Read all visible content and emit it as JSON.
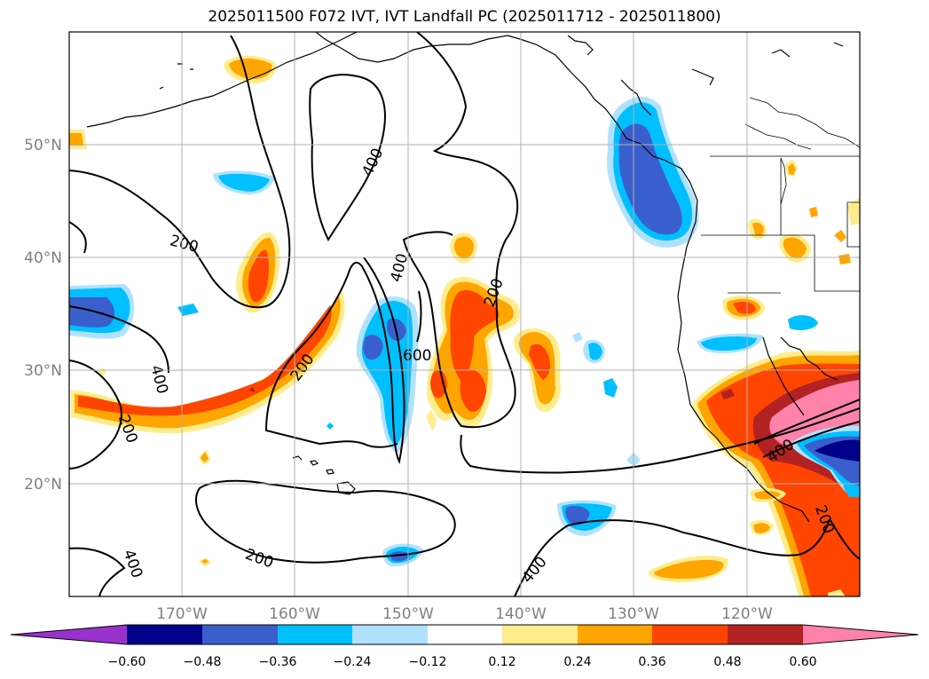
{
  "title": "2025011500 F072 IVT, IVT Landfall PC (2025011712 - 2025011800)",
  "lat_labels": [
    "50°N",
    "40°N",
    "30°N",
    "20°N"
  ],
  "lon_labels": [
    "170°W",
    "160°W",
    "150°W",
    "140°W",
    "130°W",
    "120°W"
  ],
  "contour_labels": [
    "200",
    "400",
    "600",
    "400",
    "200",
    "400",
    "200",
    "400",
    "200",
    "200",
    "400",
    "400",
    "200"
  ],
  "colorbar": {
    "colors": [
      "#9932cc",
      "#00008b",
      "#3a5fcd",
      "#00bfff",
      "#b0e2ff",
      "#ffffff",
      "#ffec8b",
      "#ffa500",
      "#ff4500",
      "#b22222",
      "#ff82ab"
    ],
    "labels": [
      "−0.60",
      "−0.48",
      "−0.36",
      "−0.24",
      "−0.12",
      "0.12",
      "0.24",
      "0.36",
      "0.48",
      "0.60"
    ]
  }
}
